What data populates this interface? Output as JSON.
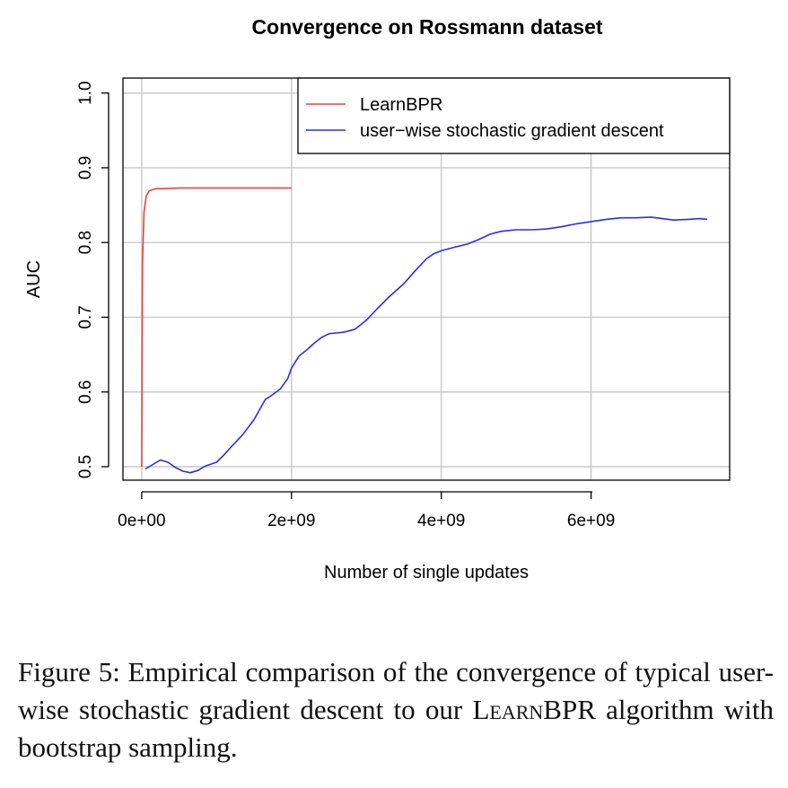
{
  "chart_data": {
    "type": "line",
    "title": "Convergence on Rossmann dataset",
    "xlabel": "Number of single updates",
    "ylabel": "AUC",
    "xlim": [
      -250000000.0,
      7850000000.0
    ],
    "ylim": [
      0.482,
      1.02
    ],
    "x_ticks": [
      0,
      2000000000,
      4000000000,
      6000000000
    ],
    "x_tick_labels": [
      "0e+00",
      "2e+09",
      "4e+09",
      "6e+09"
    ],
    "y_ticks": [
      0.5,
      0.6,
      0.7,
      0.8,
      0.9,
      1.0
    ],
    "y_tick_labels": [
      "0.5",
      "0.6",
      "0.7",
      "0.8",
      "0.9",
      "1.0"
    ],
    "grid": true,
    "legend_position": "top-right",
    "series": [
      {
        "name": "LearnBPR",
        "color": "#e8433d",
        "x": [
          0,
          10000000,
          30000000,
          60000000,
          100000000,
          150000000,
          200000000,
          300000000,
          500000000,
          800000000,
          1000000000,
          1200000000,
          1500000000,
          1800000000,
          2000000000
        ],
        "y": [
          0.5,
          0.77,
          0.84,
          0.862,
          0.869,
          0.871,
          0.872,
          0.872,
          0.873,
          0.873,
          0.873,
          0.873,
          0.873,
          0.873,
          0.873
        ]
      },
      {
        "name": "user−wise stochastic gradient descent",
        "color": "#2b2bf5",
        "x": [
          50000000,
          150000000,
          250000000,
          350000000,
          450000000,
          550000000,
          650000000,
          750000000,
          850000000,
          1000000000,
          1100000000,
          1200000000,
          1350000000,
          1500000000,
          1650000000,
          1700000000,
          1850000000,
          1950000000,
          2000000000,
          2100000000,
          2200000000,
          2300000000,
          2400000000,
          2500000000,
          2600000000,
          2700000000,
          2850000000,
          3000000000,
          3150000000,
          3300000000,
          3500000000,
          3650000000,
          3800000000,
          3900000000,
          4000000000,
          4150000000,
          4350000000,
          4500000000,
          4650000000,
          4800000000,
          5000000000,
          5200000000,
          5400000000,
          5600000000,
          5800000000,
          6000000000,
          6200000000,
          6400000000,
          6600000000,
          6800000000,
          6950000000,
          7100000000,
          7300000000,
          7450000000,
          7550000000
        ],
        "y": [
          0.497,
          0.503,
          0.509,
          0.506,
          0.499,
          0.494,
          0.492,
          0.495,
          0.501,
          0.506,
          0.516,
          0.527,
          0.543,
          0.563,
          0.59,
          0.593,
          0.604,
          0.618,
          0.632,
          0.648,
          0.656,
          0.665,
          0.673,
          0.678,
          0.679,
          0.68,
          0.684,
          0.696,
          0.712,
          0.727,
          0.745,
          0.762,
          0.778,
          0.785,
          0.789,
          0.793,
          0.798,
          0.804,
          0.811,
          0.815,
          0.817,
          0.817,
          0.818,
          0.821,
          0.825,
          0.828,
          0.831,
          0.833,
          0.833,
          0.834,
          0.832,
          0.83,
          0.831,
          0.832,
          0.831
        ]
      }
    ]
  },
  "caption": {
    "prefix": "Figure 5:  Empirical comparison of the convergence of typical user-wise stochastic gradient descent to our ",
    "algo": "LearnBPR",
    "suffix": " algorithm with bootstrap sampling."
  }
}
